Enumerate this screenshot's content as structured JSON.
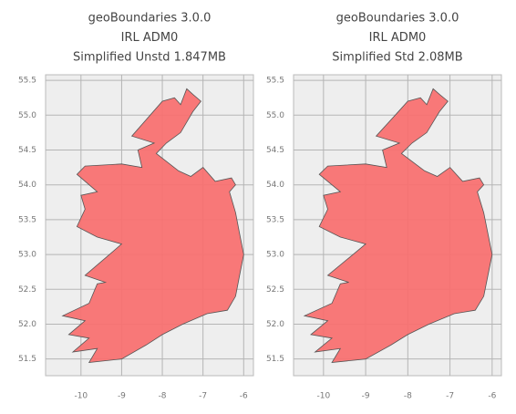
{
  "chart_data": [
    {
      "type": "map",
      "title": [
        "geoBoundaries 3.0.0",
        "IRL ADM0",
        "Simplified Unstd 1.847MB"
      ],
      "xlim": [
        -10.87,
        -5.76
      ],
      "ylim": [
        51.26,
        55.58
      ],
      "xticks": [
        -10,
        -9,
        -8,
        -7,
        -6
      ],
      "yticks": [
        {
          "value": 51.5,
          "label": "51.5"
        },
        {
          "value": 52,
          "label": "52.0"
        },
        {
          "value": 52.5,
          "label": "52.5"
        },
        {
          "value": 53,
          "label": "53.0"
        },
        {
          "value": 53.5,
          "label": "53.5"
        },
        {
          "value": 54,
          "label": "54.0"
        },
        {
          "value": 54.5,
          "label": "54.5"
        },
        {
          "value": 55,
          "label": "55.0"
        },
        {
          "value": 55.5,
          "label": "55.5"
        }
      ],
      "grid": true,
      "color": "#f87171"
    },
    {
      "type": "map",
      "title": [
        "geoBoundaries 3.0.0",
        "IRL ADM0",
        "Simplified Std 2.08MB"
      ],
      "xlim": [
        -10.71,
        -5.78
      ],
      "ylim": [
        51.26,
        55.58
      ],
      "xticks": [
        -10,
        -9,
        -8,
        -7,
        -6
      ],
      "yticks": [
        {
          "value": 51.5,
          "label": "51.5"
        },
        {
          "value": 52,
          "label": "52.0"
        },
        {
          "value": 52.5,
          "label": "52.5"
        },
        {
          "value": 53,
          "label": "53.0"
        },
        {
          "value": 53.5,
          "label": "53.5"
        },
        {
          "value": 54,
          "label": "54.0"
        },
        {
          "value": 54.5,
          "label": "54.5"
        },
        {
          "value": 55,
          "label": "55.0"
        },
        {
          "value": 55.5,
          "label": "55.5"
        }
      ],
      "grid": true,
      "color": "#f87171"
    }
  ]
}
